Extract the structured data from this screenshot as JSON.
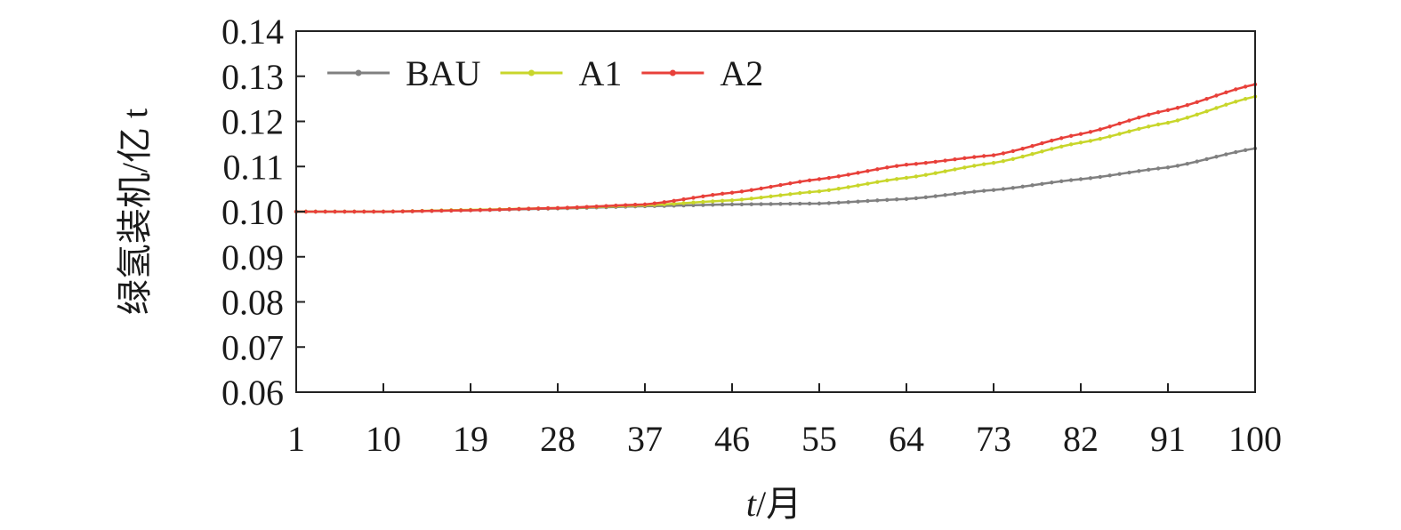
{
  "chart_data": {
    "type": "line",
    "xlabel": "t/月",
    "xlabel_parts": {
      "var": "t",
      "unit": "/月"
    },
    "ylabel": "绿氢装机/亿 t",
    "xlim": [
      1,
      100
    ],
    "ylim": [
      0.06,
      0.14
    ],
    "x_ticks": [
      1,
      10,
      19,
      28,
      37,
      46,
      55,
      64,
      73,
      82,
      91,
      100
    ],
    "y_ticks": [
      "0.06",
      "0.07",
      "0.08",
      "0.09",
      "0.10",
      "0.11",
      "0.12",
      "0.13",
      "0.14"
    ],
    "grid": false,
    "legend": {
      "position": "top-left",
      "entries": [
        "BAU",
        "A1",
        "A2"
      ]
    },
    "series": [
      {
        "name": "BAU",
        "color": "#808080",
        "points": [
          [
            1,
            0.1
          ],
          [
            10,
            0.1
          ],
          [
            19,
            0.1003
          ],
          [
            28,
            0.1007
          ],
          [
            37,
            0.1012
          ],
          [
            46,
            0.1016
          ],
          [
            55,
            0.1018
          ],
          [
            64,
            0.1028
          ],
          [
            73,
            0.1048
          ],
          [
            82,
            0.1072
          ],
          [
            91,
            0.1098
          ],
          [
            100,
            0.114
          ]
        ]
      },
      {
        "name": "A1",
        "color": "#c8d62b",
        "points": [
          [
            1,
            0.1
          ],
          [
            10,
            0.1
          ],
          [
            19,
            0.1004
          ],
          [
            28,
            0.1008
          ],
          [
            37,
            0.1014
          ],
          [
            46,
            0.1025
          ],
          [
            55,
            0.1045
          ],
          [
            64,
            0.1075
          ],
          [
            73,
            0.1108
          ],
          [
            82,
            0.1153
          ],
          [
            91,
            0.1197
          ],
          [
            100,
            0.1255
          ]
        ]
      },
      {
        "name": "A2",
        "color": "#e8403a",
        "points": [
          [
            1,
            0.1
          ],
          [
            10,
            0.1
          ],
          [
            19,
            0.1003
          ],
          [
            28,
            0.1008
          ],
          [
            37,
            0.1016
          ],
          [
            46,
            0.1042
          ],
          [
            55,
            0.1072
          ],
          [
            64,
            0.1104
          ],
          [
            73,
            0.1125
          ],
          [
            82,
            0.1172
          ],
          [
            91,
            0.1225
          ],
          [
            100,
            0.1282
          ]
        ]
      }
    ]
  }
}
